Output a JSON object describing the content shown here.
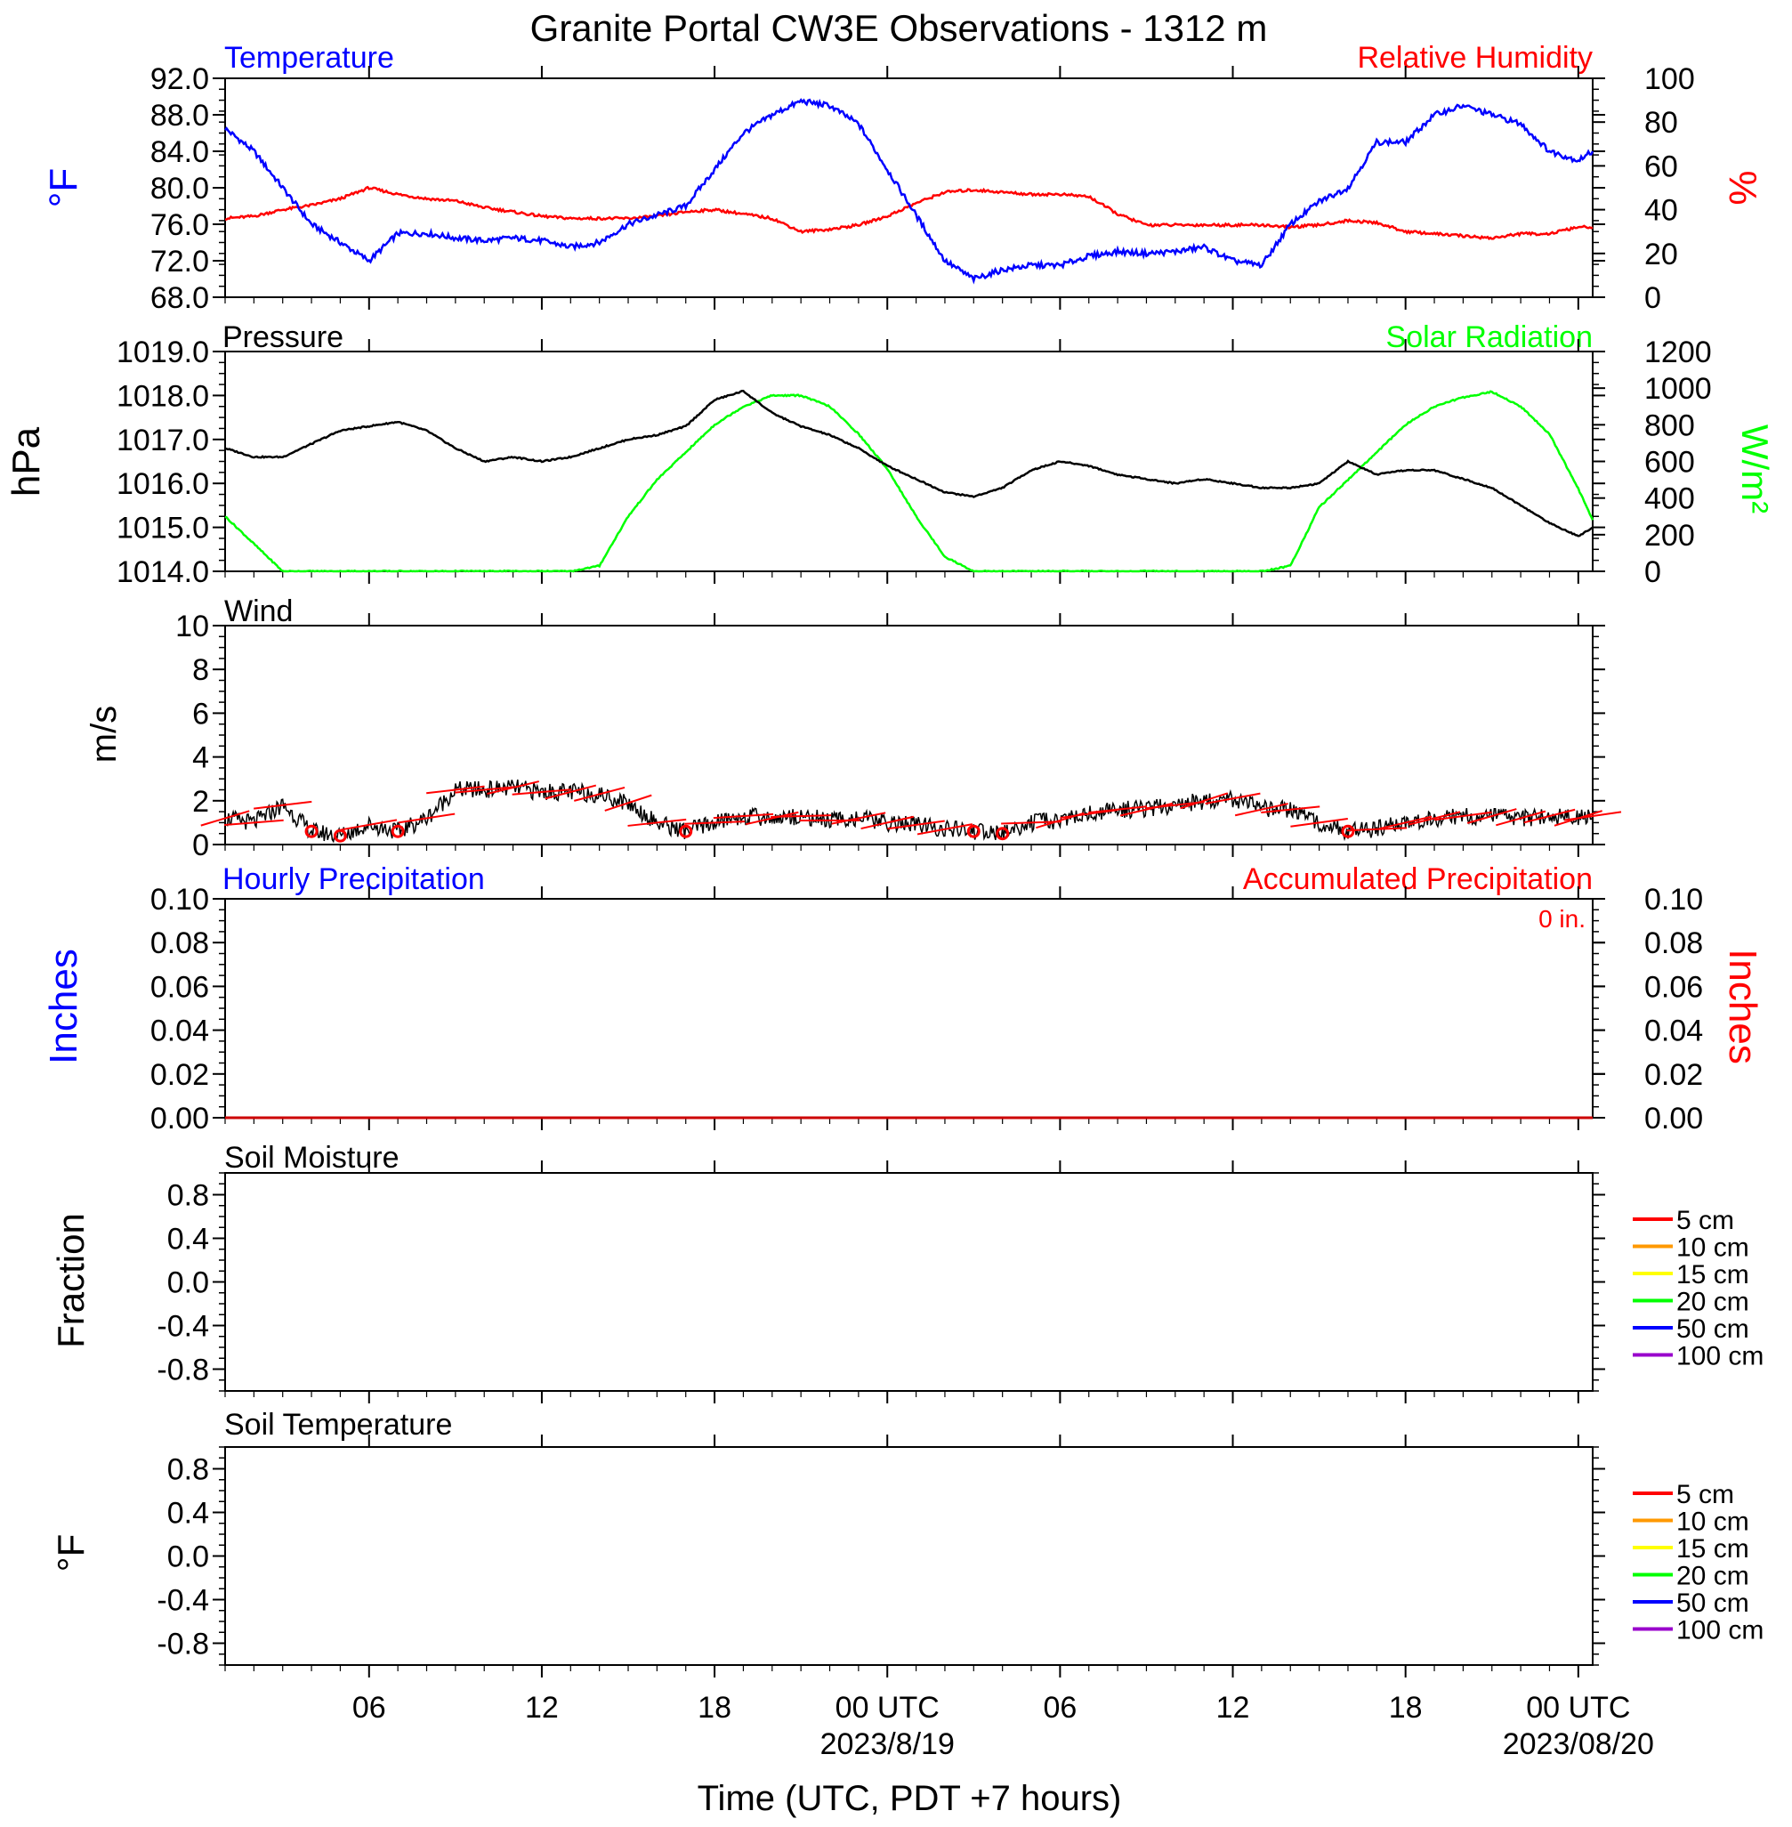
{
  "title": "Granite Portal CW3E Observations - 1312 m",
  "colors": {
    "temperature": "#0000ff",
    "humidity": "#ff0000",
    "pressure": "#000000",
    "solar": "#00ff00",
    "wind": "#000000",
    "barb": "#ff0000",
    "hourly_precip": "#0000ff",
    "accum_precip": "#ff0000"
  },
  "x_axis": {
    "title": "Time (UTC, PDT +7 hours)",
    "range_hours": [
      -23,
      24.5
    ],
    "ticks": [
      {
        "h": -18,
        "label": "06"
      },
      {
        "h": -12,
        "label": "12"
      },
      {
        "h": -6,
        "label": "18"
      },
      {
        "h": 0,
        "label": "00 UTC"
      },
      {
        "h": 6,
        "label": "06"
      },
      {
        "h": 12,
        "label": "12"
      },
      {
        "h": 18,
        "label": "18"
      },
      {
        "h": 24,
        "label": "00 UTC"
      }
    ],
    "date_labels": [
      {
        "h": 0,
        "label": "2023/8/19"
      },
      {
        "h": 24,
        "label": "2023/08/20"
      }
    ]
  },
  "panels": {
    "temp_rh": {
      "left_title": "Temperature",
      "right_title": "Relative Humidity",
      "left_unit": "°F",
      "right_unit": "%",
      "left_range": [
        68,
        92
      ],
      "right_range": [
        0,
        100
      ],
      "left_ticks": [
        "92.0",
        "88.0",
        "84.0",
        "80.0",
        "76.0",
        "72.0",
        "68.0"
      ],
      "right_ticks": [
        "100",
        "80",
        "60",
        "40",
        "20",
        "0"
      ]
    },
    "pressure_solar": {
      "left_title": "Pressure",
      "right_title": "Solar Radiation",
      "left_unit": "hPa",
      "right_unit": "W/m²",
      "left_range": [
        1014,
        1019
      ],
      "right_range": [
        0,
        1200
      ],
      "left_ticks": [
        "1019.0",
        "1018.0",
        "1017.0",
        "1016.0",
        "1015.0",
        "1014.0"
      ],
      "right_ticks": [
        "1200",
        "1000",
        "800",
        "600",
        "400",
        "200",
        "0"
      ]
    },
    "wind": {
      "left_title": "Wind",
      "left_unit": "m/s",
      "left_range": [
        0,
        10
      ],
      "left_ticks": [
        "10",
        "8",
        "6",
        "4",
        "2",
        "0"
      ]
    },
    "precip": {
      "left_title": "Hourly Precipitation",
      "right_title": "Accumulated Precipitation",
      "total_label": "0 in.",
      "left_unit": "Inches",
      "right_unit": "Inches",
      "left_range": [
        0,
        0.1
      ],
      "right_range": [
        0,
        0.1
      ],
      "left_ticks": [
        "0.10",
        "0.08",
        "0.06",
        "0.04",
        "0.02",
        "0.00"
      ],
      "right_ticks": [
        "0.10",
        "0.08",
        "0.06",
        "0.04",
        "0.02",
        "0.00"
      ]
    },
    "soil_moisture": {
      "left_title": "Soil Moisture",
      "left_unit": "Fraction",
      "left_range": [
        -1,
        1
      ],
      "left_ticks": [
        "0.8",
        "0.4",
        "0.0",
        "-0.4",
        "-0.8"
      ],
      "legend": [
        {
          "label": "5 cm",
          "color": "#ff0000"
        },
        {
          "label": "10 cm",
          "color": "#ff9900"
        },
        {
          "label": "15 cm",
          "color": "#ffff00"
        },
        {
          "label": "20 cm",
          "color": "#00ff00"
        },
        {
          "label": "50 cm",
          "color": "#0000ff"
        },
        {
          "label": "100 cm",
          "color": "#9900cc"
        }
      ]
    },
    "soil_temp": {
      "left_title": "Soil Temperature",
      "left_unit": "°F",
      "left_range": [
        -1,
        1
      ],
      "left_ticks": [
        "0.8",
        "0.4",
        "0.0",
        "-0.4",
        "-0.8"
      ],
      "legend": [
        {
          "label": "5 cm",
          "color": "#ff0000"
        },
        {
          "label": "10 cm",
          "color": "#ff9900"
        },
        {
          "label": "15 cm",
          "color": "#ffff00"
        },
        {
          "label": "20 cm",
          "color": "#00ff00"
        },
        {
          "label": "50 cm",
          "color": "#0000ff"
        },
        {
          "label": "100 cm",
          "color": "#9900cc"
        }
      ]
    }
  },
  "chart_data": [
    {
      "type": "line",
      "title": "Temperature",
      "ylabel": "°F",
      "ylim": [
        68,
        92
      ],
      "series": [
        {
          "name": "Temperature",
          "x": [
            -23,
            -22,
            -21,
            -20,
            -19,
            -18,
            -17,
            -16,
            -15,
            -14,
            -13,
            -12,
            -11,
            -10,
            -9,
            -8,
            -7,
            -6,
            -5,
            -4,
            -3,
            -2,
            -1,
            0,
            1,
            2,
            3,
            4,
            5,
            6,
            7,
            8,
            9,
            10,
            11,
            12,
            13,
            14,
            15,
            16,
            17,
            18,
            19,
            20,
            21,
            22,
            23,
            24,
            24.5
          ],
          "values": [
            86.5,
            84,
            80,
            76,
            74,
            72,
            75,
            75,
            74.5,
            74.2,
            74.5,
            74.2,
            73.5,
            74,
            76,
            77,
            78,
            82,
            86,
            88,
            89.5,
            89,
            87,
            82,
            77,
            72,
            70,
            71,
            71.5,
            71.5,
            72.5,
            73,
            72.8,
            73,
            73.5,
            72,
            71.5,
            76,
            78.5,
            80,
            85,
            85,
            88,
            89,
            88,
            87,
            84,
            83,
            84
          ]
        }
      ]
    },
    {
      "type": "line",
      "title": "Relative Humidity",
      "ylabel": "%",
      "ylim": [
        0,
        100
      ],
      "series": [
        {
          "name": "Relative Humidity",
          "x": [
            -23,
            -22,
            -21,
            -20,
            -19,
            -18,
            -17,
            -16,
            -15,
            -14,
            -13,
            -12,
            -11,
            -10,
            -9,
            -8,
            -7,
            -6,
            -5,
            -4,
            -3,
            -2,
            -1,
            0,
            1,
            2,
            3,
            4,
            5,
            6,
            7,
            8,
            9,
            10,
            11,
            12,
            13,
            14,
            15,
            16,
            17,
            18,
            19,
            20,
            21,
            22,
            23,
            24,
            24.5
          ],
          "values": [
            36,
            37,
            40,
            42,
            45,
            50,
            47,
            45,
            44,
            41,
            39,
            37,
            36,
            36,
            36,
            37,
            39,
            40,
            38,
            36,
            30,
            31,
            33,
            37,
            43,
            48,
            49,
            48,
            47,
            47,
            46,
            38,
            33,
            33,
            33,
            33,
            33,
            32,
            33,
            35,
            34,
            30,
            29,
            28,
            27,
            29,
            29,
            32,
            32
          ]
        }
      ]
    },
    {
      "type": "line",
      "title": "Pressure",
      "ylabel": "hPa",
      "ylim": [
        1014,
        1019
      ],
      "series": [
        {
          "name": "Pressure",
          "x": [
            -23,
            -22,
            -21,
            -20,
            -19,
            -18,
            -17,
            -16,
            -15,
            -14,
            -13,
            -12,
            -11,
            -10,
            -9,
            -8,
            -7,
            -6,
            -5,
            -4,
            -3,
            -2,
            -1,
            0,
            1,
            2,
            3,
            4,
            5,
            6,
            7,
            8,
            9,
            10,
            11,
            12,
            13,
            14,
            15,
            16,
            17,
            18,
            19,
            20,
            21,
            22,
            23,
            24,
            24.5
          ],
          "values": [
            1016.8,
            1016.6,
            1016.6,
            1016.9,
            1017.2,
            1017.3,
            1017.4,
            1017.2,
            1016.8,
            1016.5,
            1016.6,
            1016.5,
            1016.6,
            1016.8,
            1017,
            1017.1,
            1017.3,
            1017.9,
            1018.1,
            1017.6,
            1017.3,
            1017.1,
            1016.8,
            1016.4,
            1016.1,
            1015.8,
            1015.7,
            1015.9,
            1016.3,
            1016.5,
            1016.4,
            1016.2,
            1016.1,
            1016,
            1016.1,
            1016,
            1015.9,
            1015.9,
            1016,
            1016.5,
            1016.2,
            1016.3,
            1016.3,
            1016.1,
            1015.9,
            1015.5,
            1015.1,
            1014.8,
            1015
          ]
        }
      ]
    },
    {
      "type": "line",
      "title": "Solar Radiation",
      "ylabel": "W/m²",
      "ylim": [
        0,
        1200
      ],
      "series": [
        {
          "name": "Solar Radiation",
          "x": [
            -23,
            -22,
            -21,
            -20,
            -19,
            -18,
            -17,
            -16,
            -15,
            -14,
            -13,
            -12,
            -11,
            -10,
            -9,
            -8,
            -7,
            -6,
            -5,
            -4,
            -3,
            -2,
            -1,
            0,
            1,
            2,
            3,
            4,
            5,
            6,
            7,
            8,
            9,
            10,
            11,
            12,
            13,
            14,
            15,
            16,
            17,
            18,
            19,
            20,
            21,
            22,
            23,
            24,
            24.5
          ],
          "values": [
            300,
            150,
            0,
            0,
            0,
            0,
            0,
            0,
            0,
            0,
            0,
            0,
            0,
            30,
            300,
            500,
            650,
            800,
            900,
            960,
            960,
            900,
            750,
            560,
            300,
            80,
            0,
            0,
            0,
            0,
            0,
            0,
            0,
            0,
            0,
            0,
            0,
            30,
            350,
            500,
            650,
            800,
            900,
            950,
            980,
            900,
            750,
            450,
            280
          ]
        }
      ]
    },
    {
      "type": "line",
      "title": "Wind",
      "ylabel": "m/s",
      "ylim": [
        0,
        10
      ],
      "series": [
        {
          "name": "Wind speed",
          "x": [
            -23,
            -22,
            -21,
            -20,
            -19,
            -18,
            -17,
            -16,
            -15,
            -14,
            -13,
            -12,
            -11,
            -10,
            -9,
            -8,
            -7,
            -6,
            -5,
            -4,
            -3,
            -2,
            -1,
            0,
            1,
            2,
            3,
            4,
            5,
            6,
            7,
            8,
            9,
            10,
            11,
            12,
            13,
            14,
            15,
            16,
            17,
            18,
            19,
            20,
            21,
            22,
            23,
            24,
            24.5
          ],
          "values": [
            1.2,
            1.0,
            1.8,
            0.6,
            0.4,
            0.9,
            0.6,
            1.2,
            2.5,
            2.5,
            2.6,
            2.4,
            2.4,
            2.3,
            1.9,
            1.0,
            0.6,
            1.0,
            1.3,
            1.2,
            1.3,
            1.1,
            1.2,
            1.0,
            0.9,
            0.7,
            0.6,
            0.5,
            1.0,
            1.1,
            1.4,
            1.6,
            1.6,
            1.8,
            2.0,
            2.1,
            1.6,
            1.6,
            1.0,
            0.6,
            0.7,
            1.0,
            1.2,
            1.3,
            1.3,
            1.2,
            1.3,
            1.2,
            1.3
          ]
        }
      ]
    },
    {
      "type": "line",
      "title": "Hourly Precipitation",
      "ylabel": "Inches",
      "ylim": [
        0,
        0.1
      ],
      "series": [
        {
          "name": "Hourly Precipitation",
          "x": [
            -23,
            24.5
          ],
          "values": [
            0,
            0
          ]
        },
        {
          "name": "Accumulated Precipitation",
          "x": [
            -23,
            24.5
          ],
          "values": [
            0,
            0
          ]
        }
      ]
    },
    {
      "type": "line",
      "title": "Soil Moisture",
      "ylabel": "Fraction",
      "ylim": [
        -1,
        1
      ],
      "series": []
    },
    {
      "type": "line",
      "title": "Soil Temperature",
      "ylabel": "°F",
      "ylim": [
        -1,
        1
      ],
      "series": []
    }
  ]
}
